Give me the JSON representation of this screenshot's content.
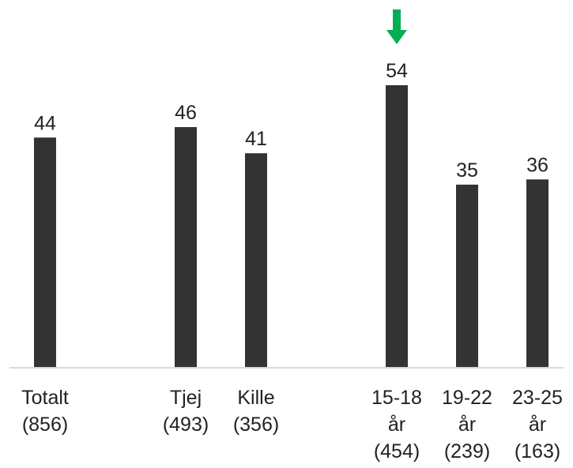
{
  "chart_data": {
    "type": "bar",
    "categories": [
      [
        "Totalt",
        "(856)"
      ],
      [
        "Tjej",
        "(493)"
      ],
      [
        "Kille",
        "(356)"
      ],
      [
        "15-18",
        "år",
        "(454)"
      ],
      [
        "19-22",
        "år",
        "(239)"
      ],
      [
        "23-25",
        "år",
        "(163)"
      ]
    ],
    "values": [
      44,
      46,
      41,
      54,
      35,
      36
    ],
    "data_labels": [
      "44",
      "46",
      "41",
      "54",
      "35",
      "36"
    ],
    "ylim": [
      0,
      60
    ],
    "highlight": {
      "category_index": 3,
      "marker": "down-arrow",
      "color": "#00b050"
    },
    "bar_color": "#333333",
    "grid": false,
    "title": "",
    "xlabel": "",
    "ylabel": ""
  }
}
